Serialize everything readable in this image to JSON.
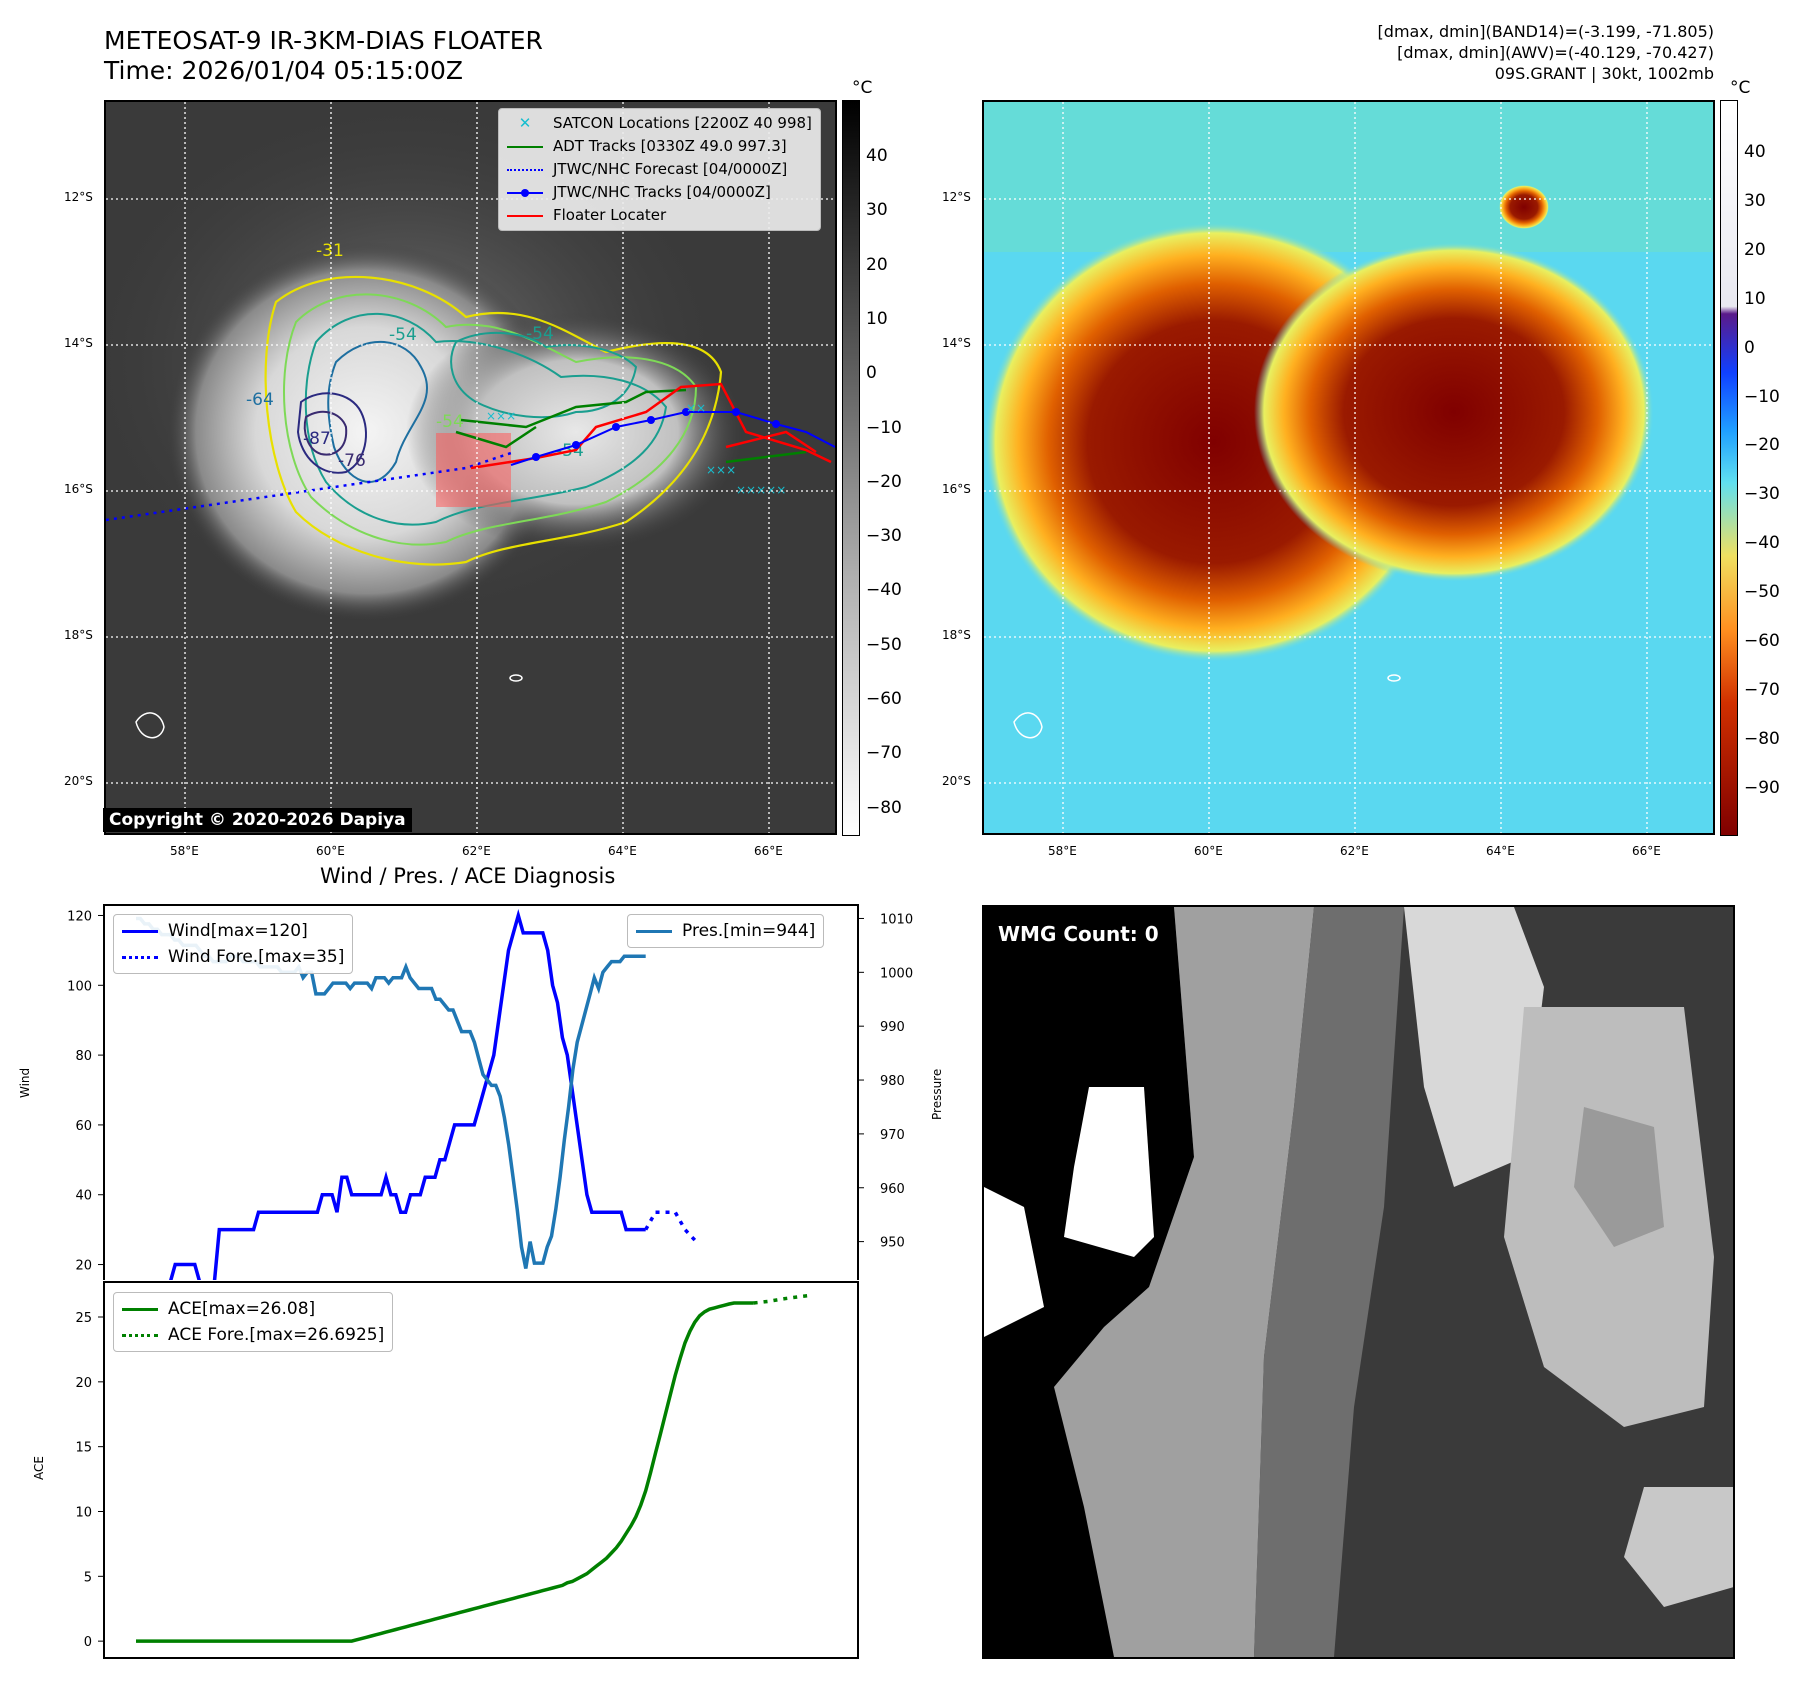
{
  "header": {
    "title_line1": "METEOSAT-9 IR-3KM-DIAS FLOATER",
    "title_line2": "Time: 2026/01/04 05:15:00Z",
    "right_line1": "[dmax, dmin](BAND14)=(-3.199, -71.805)",
    "right_line2": "[dmax, dmin](AWV)=(-40.129, -70.427)",
    "right_line3": "09S.GRANT | 30kt, 1002mb"
  },
  "map": {
    "lat_labels": [
      "12°S",
      "14°S",
      "16°S",
      "18°S",
      "20°S"
    ],
    "lon_labels": [
      "58°E",
      "60°E",
      "62°E",
      "64°E",
      "66°E"
    ],
    "contour_labels": [
      "-31",
      "-54",
      "-54",
      "-64",
      "-87",
      "-76",
      "-54",
      "-54"
    ],
    "legend": [
      {
        "label": "SATCON Locations [2200Z 40 998]",
        "color": "#17becf",
        "style": "x"
      },
      {
        "label": "ADT Tracks [0330Z 49.0 997.3]",
        "color": "#008000",
        "style": "line"
      },
      {
        "label": "JTWC/NHC Forecast [04/0000Z]",
        "color": "#0000ff",
        "style": "dotted"
      },
      {
        "label": "JTWC/NHC Tracks [04/0000Z]",
        "color": "#0000ff",
        "style": "line-dot"
      },
      {
        "label": "Floater Locater",
        "color": "#ff0000",
        "style": "line"
      }
    ],
    "copyright": "Copyright © 2020-2026 Dapiya",
    "ir_colorbar": {
      "unit": "°C",
      "ticks": [
        "40",
        "30",
        "20",
        "10",
        "0",
        "−10",
        "−20",
        "−30",
        "−40",
        "−50",
        "−60",
        "−70",
        "−80"
      ]
    },
    "awv_colorbar": {
      "unit": "°C",
      "ticks": [
        "40",
        "30",
        "20",
        "10",
        "0",
        "−10",
        "−20",
        "−30",
        "−40",
        "−50",
        "−60",
        "−70",
        "−80",
        "−90"
      ]
    }
  },
  "wmg": {
    "label": "WMG Count: 0"
  },
  "chart_data": [
    {
      "type": "line",
      "title": "Wind / Pres. / ACE Diagnosis",
      "ylabel": "Wind",
      "ylabel_right": "Pressure",
      "ylim": [
        15,
        123
      ],
      "ylim_right": [
        942.5,
        1012.5
      ],
      "yticks": [
        20,
        40,
        60,
        80,
        100,
        120
      ],
      "yticks_right": [
        950,
        960,
        970,
        980,
        990,
        1000,
        1010
      ],
      "grid": false,
      "legend_left": "upper left",
      "legend_right": "upper right",
      "series": [
        {
          "name": "Wind[max=120]",
          "color": "#0000ff",
          "style": "solid",
          "axis": "left",
          "values": [
            15,
            15,
            15,
            15,
            15,
            15,
            15,
            15,
            20,
            20,
            20,
            20,
            20,
            15,
            15,
            15,
            15,
            30,
            30,
            30,
            30,
            30,
            30,
            30,
            30,
            35,
            35,
            35,
            35,
            35,
            35,
            35,
            35,
            35,
            35,
            35,
            35,
            35,
            40,
            40,
            40,
            35,
            45,
            45,
            40,
            40,
            40,
            40,
            40,
            40,
            40,
            45,
            40,
            40,
            35,
            35,
            40,
            40,
            40,
            45,
            45,
            45,
            50,
            50,
            55,
            60,
            60,
            60,
            60,
            60,
            65,
            70,
            75,
            80,
            90,
            100,
            110,
            115,
            120,
            115,
            115,
            115,
            115,
            115,
            110,
            100,
            95,
            85,
            80,
            70,
            60,
            50,
            40,
            35,
            35,
            35,
            35,
            35,
            35,
            35,
            30,
            30,
            30,
            30,
            30
          ]
        },
        {
          "name": "Wind Fore.[max=35]",
          "color": "#0000ff",
          "style": "dotted",
          "axis": "left",
          "x_start": 104,
          "x_step": 2,
          "values": [
            30,
            35,
            35,
            35,
            30,
            27
          ]
        },
        {
          "name": "Pres.[min=944]",
          "color": "#1f77b4",
          "style": "solid",
          "axis": "right",
          "values": [
            1010,
            1010,
            1009,
            1009,
            1008,
            1008,
            1007,
            1007,
            1007,
            1006,
            1006,
            1005,
            1005,
            1005,
            1005,
            1004,
            1003,
            1003,
            1002,
            1002,
            1002,
            1002,
            1003,
            1003,
            1003,
            1002,
            1002,
            1002,
            1002,
            1001,
            1001,
            1001,
            1001,
            1001,
            1000,
            1000,
            1000,
            1000,
            1001,
            999,
            1000,
            1000,
            996,
            996,
            996,
            997,
            998,
            998,
            998,
            998,
            997,
            998,
            998,
            998,
            998,
            997,
            999,
            999,
            999,
            998,
            999,
            999,
            999,
            1001,
            999,
            998,
            997,
            997,
            997,
            997,
            995,
            995,
            994,
            993,
            993,
            991,
            989,
            989,
            989,
            987,
            984,
            981,
            980,
            979,
            979,
            977,
            973,
            968,
            962,
            956,
            949,
            945,
            950,
            946,
            946,
            946,
            949,
            951,
            956,
            962,
            969,
            975,
            982,
            987,
            990,
            993,
            996,
            999,
            997,
            1000,
            1001,
            1002,
            1002,
            1002,
            1003,
            1003,
            1003,
            1003,
            1003,
            1003
          ]
        }
      ]
    },
    {
      "type": "line",
      "ylabel": "ACE",
      "ylim": [
        -1.3,
        27.7
      ],
      "yticks": [
        0,
        5,
        10,
        15,
        20,
        25
      ],
      "grid": false,
      "legend": "upper left",
      "series": [
        {
          "name": "ACE[max=26.08]",
          "color": "#008000",
          "style": "solid",
          "values": [
            0,
            0,
            0,
            0,
            0,
            0,
            0,
            0,
            0,
            0,
            0,
            0,
            0,
            0,
            0,
            0,
            0,
            0,
            0,
            0,
            0,
            0,
            0,
            0,
            0,
            0,
            0,
            0,
            0,
            0,
            0,
            0,
            0,
            0,
            0,
            0,
            0,
            0,
            0,
            0,
            0,
            0,
            0,
            0,
            0,
            0.1,
            0.2,
            0.3,
            0.4,
            0.5,
            0.6,
            0.7,
            0.8,
            0.9,
            1.0,
            1.1,
            1.2,
            1.3,
            1.4,
            1.5,
            1.6,
            1.7,
            1.8,
            1.9,
            2.0,
            2.1,
            2.2,
            2.3,
            2.4,
            2.5,
            2.6,
            2.7,
            2.8,
            2.9,
            3.0,
            3.1,
            3.2,
            3.3,
            3.4,
            3.5,
            3.6,
            3.7,
            3.8,
            3.9,
            4.0,
            4.1,
            4.2,
            4.3,
            4.5,
            4.6,
            4.8,
            5.0,
            5.2,
            5.5,
            5.8,
            6.1,
            6.4,
            6.8,
            7.2,
            7.7,
            8.3,
            8.9,
            9.6,
            10.5,
            11.6,
            13.0,
            14.5,
            16.0,
            17.5,
            19.0,
            20.5,
            21.8,
            23.0,
            23.9,
            24.6,
            25.1,
            25.4,
            25.6,
            25.7,
            25.8,
            25.9,
            26.0,
            26.08,
            26.08,
            26.08,
            26.08,
            26.08
          ]
        },
        {
          "name": "ACE Fore.[max=26.6925]",
          "color": "#008000",
          "style": "dotted",
          "x_start": 126,
          "x_step": 3,
          "values": [
            26.08,
            26.2,
            26.4,
            26.55,
            26.6925
          ]
        }
      ]
    }
  ]
}
